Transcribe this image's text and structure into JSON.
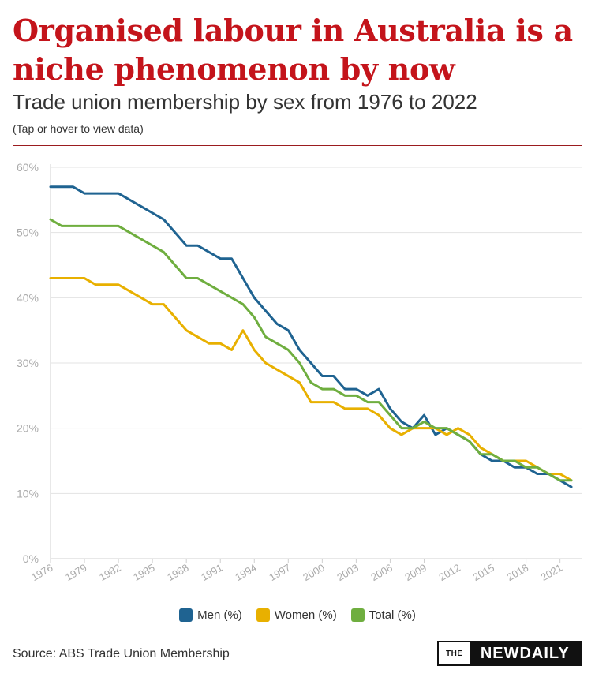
{
  "header": {
    "headline": "Organised labour in Australia is a niche phenomenon by now",
    "subtitle": "Trade union membership by sex from 1976 to 2022",
    "note": "(Tap or hover to view data)"
  },
  "footer": {
    "source": "Source: ABS Trade Union Membership",
    "logo_the": "THE",
    "logo_main": "NEWDAILY"
  },
  "colors": {
    "men": "#1f6391",
    "women": "#e8b000",
    "total": "#6fae3f",
    "headline": "#c4141b",
    "grid": "#e3e3e3",
    "axis_text": "#aaaaaa"
  },
  "chart_data": {
    "type": "line",
    "title": "Trade union membership by sex from 1976 to 2022",
    "xlabel": "",
    "ylabel": "",
    "ylim": [
      0,
      60
    ],
    "yticks": [
      "0%",
      "10%",
      "20%",
      "30%",
      "40%",
      "50%",
      "60%"
    ],
    "xtick_labels": [
      "1976",
      "1979",
      "1982",
      "1985",
      "1988",
      "1991",
      "1994",
      "1997",
      "2000",
      "2003",
      "2006",
      "2009",
      "2012",
      "2015",
      "2018",
      "2021"
    ],
    "grid": true,
    "legend_position": "bottom",
    "x": [
      1976,
      1977,
      1978,
      1979,
      1980,
      1981,
      1982,
      1983,
      1984,
      1985,
      1986,
      1987,
      1988,
      1989,
      1990,
      1991,
      1992,
      1993,
      1994,
      1995,
      1996,
      1997,
      1998,
      1999,
      2000,
      2001,
      2002,
      2003,
      2004,
      2005,
      2006,
      2007,
      2008,
      2009,
      2010,
      2011,
      2012,
      2013,
      2014,
      2015,
      2016,
      2017,
      2018,
      2019,
      2020,
      2021,
      2022
    ],
    "series": [
      {
        "name": "Men (%)",
        "color": "#1f6391",
        "values": [
          57,
          57,
          57,
          56,
          56,
          56,
          56,
          55,
          54,
          53,
          52,
          50,
          48,
          48,
          47,
          46,
          46,
          43,
          40,
          38,
          36,
          35,
          32,
          30,
          28,
          28,
          26,
          26,
          25,
          26,
          23,
          21,
          20,
          22,
          19,
          20,
          19,
          18,
          16,
          15,
          15,
          14,
          14,
          13,
          13,
          12,
          11
        ]
      },
      {
        "name": "Women (%)",
        "color": "#e8b000",
        "values": [
          43,
          43,
          43,
          43,
          42,
          42,
          42,
          41,
          40,
          39,
          39,
          37,
          35,
          34,
          33,
          33,
          32,
          35,
          32,
          30,
          29,
          28,
          27,
          24,
          24,
          24,
          23,
          23,
          23,
          22,
          20,
          19,
          20,
          20,
          20,
          19,
          20,
          19,
          17,
          16,
          15,
          15,
          15,
          14,
          13,
          13,
          12
        ]
      },
      {
        "name": "Total (%)",
        "color": "#6fae3f",
        "values": [
          52,
          51,
          51,
          51,
          51,
          51,
          51,
          50,
          49,
          48,
          47,
          45,
          43,
          43,
          42,
          41,
          40,
          39,
          37,
          34,
          33,
          32,
          30,
          27,
          26,
          26,
          25,
          25,
          24,
          24,
          22,
          20,
          20,
          21,
          20,
          20,
          19,
          18,
          16,
          16,
          15,
          15,
          14,
          14,
          13,
          12,
          12
        ]
      }
    ]
  }
}
